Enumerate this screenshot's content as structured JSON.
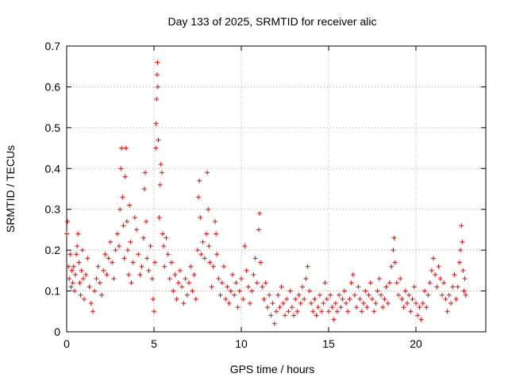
{
  "chart_data": {
    "type": "scatter",
    "title": "Day 133 of 2025, SRMTID for receiver alic",
    "xlabel": "GPS time / hours",
    "ylabel": "SRMTID / TECUs",
    "xlim": [
      0,
      24
    ],
    "ylim": [
      0,
      0.7
    ],
    "x_ticks": [
      0,
      5,
      10,
      15,
      20
    ],
    "y_ticks": [
      0,
      0.1,
      0.2,
      0.3,
      0.4,
      0.5,
      0.6,
      0.7
    ],
    "x_tick_labels": [
      "0",
      "5",
      "10",
      "15",
      "20"
    ],
    "y_tick_labels": [
      "0",
      "0.1",
      "0.2",
      "0.3",
      "0.4",
      "0.5",
      "0.6",
      "0.7"
    ],
    "grid": true,
    "marker": "+",
    "marker_color": "#ff0000",
    "series": [
      {
        "name": "SRMTID",
        "points": [
          [
            0.0,
            0.24
          ],
          [
            0.05,
            0.27
          ],
          [
            0.1,
            0.16
          ],
          [
            0.15,
            0.13
          ],
          [
            0.2,
            0.19
          ],
          [
            0.25,
            0.11
          ],
          [
            0.3,
            0.15
          ],
          [
            0.35,
            0.12
          ],
          [
            0.4,
            0.16
          ],
          [
            0.45,
            0.1
          ],
          [
            0.5,
            0.14
          ],
          [
            0.55,
            0.19
          ],
          [
            0.6,
            0.21
          ],
          [
            0.65,
            0.24
          ],
          [
            0.7,
            0.17
          ],
          [
            0.75,
            0.12
          ],
          [
            0.8,
            0.09
          ],
          [
            0.85,
            0.15
          ],
          [
            0.9,
            0.2
          ],
          [
            0.95,
            0.13
          ],
          [
            1.0,
            0.08
          ],
          [
            1.1,
            0.14
          ],
          [
            1.2,
            0.18
          ],
          [
            1.3,
            0.11
          ],
          [
            1.4,
            0.07
          ],
          [
            1.5,
            0.05
          ],
          [
            1.6,
            0.1
          ],
          [
            1.7,
            0.13
          ],
          [
            1.8,
            0.16
          ],
          [
            1.9,
            0.12
          ],
          [
            2.0,
            0.09
          ],
          [
            2.1,
            0.15
          ],
          [
            2.2,
            0.19
          ],
          [
            2.3,
            0.14
          ],
          [
            2.4,
            0.18
          ],
          [
            2.5,
            0.22
          ],
          [
            2.6,
            0.17
          ],
          [
            2.7,
            0.13
          ],
          [
            2.8,
            0.2
          ],
          [
            2.9,
            0.24
          ],
          [
            3.0,
            0.21
          ],
          [
            3.05,
            0.3
          ],
          [
            3.1,
            0.4
          ],
          [
            3.15,
            0.45
          ],
          [
            3.2,
            0.33
          ],
          [
            3.25,
            0.26
          ],
          [
            3.3,
            0.18
          ],
          [
            3.35,
            0.38
          ],
          [
            3.4,
            0.45
          ],
          [
            3.45,
            0.27
          ],
          [
            3.5,
            0.2
          ],
          [
            3.55,
            0.14
          ],
          [
            3.6,
            0.31
          ],
          [
            3.65,
            0.22
          ],
          [
            3.7,
            0.12
          ],
          [
            3.8,
            0.17
          ],
          [
            3.9,
            0.28
          ],
          [
            4.0,
            0.25
          ],
          [
            4.1,
            0.19
          ],
          [
            4.2,
            0.14
          ],
          [
            4.3,
            0.16
          ],
          [
            4.4,
            0.23
          ],
          [
            4.45,
            0.35
          ],
          [
            4.5,
            0.39
          ],
          [
            4.55,
            0.27
          ],
          [
            4.6,
            0.18
          ],
          [
            4.7,
            0.15
          ],
          [
            4.8,
            0.21
          ],
          [
            4.9,
            0.13
          ],
          [
            4.95,
            0.08
          ],
          [
            5.0,
            0.05
          ],
          [
            5.05,
            0.17
          ],
          [
            5.1,
            0.45
          ],
          [
            5.12,
            0.51
          ],
          [
            5.15,
            0.57
          ],
          [
            5.18,
            0.63
          ],
          [
            5.2,
            0.66
          ],
          [
            5.22,
            0.6
          ],
          [
            5.25,
            0.47
          ],
          [
            5.3,
            0.28
          ],
          [
            5.35,
            0.36
          ],
          [
            5.4,
            0.41
          ],
          [
            5.45,
            0.39
          ],
          [
            5.5,
            0.24
          ],
          [
            5.55,
            0.21
          ],
          [
            5.6,
            0.16
          ],
          [
            5.7,
            0.23
          ],
          [
            5.8,
            0.19
          ],
          [
            5.9,
            0.13
          ],
          [
            6.0,
            0.17
          ],
          [
            6.1,
            0.1
          ],
          [
            6.2,
            0.14
          ],
          [
            6.3,
            0.08
          ],
          [
            6.4,
            0.12
          ],
          [
            6.5,
            0.15
          ],
          [
            6.6,
            0.11
          ],
          [
            6.7,
            0.07
          ],
          [
            6.8,
            0.13
          ],
          [
            6.9,
            0.09
          ],
          [
            7.0,
            0.12
          ],
          [
            7.1,
            0.16
          ],
          [
            7.2,
            0.1
          ],
          [
            7.3,
            0.14
          ],
          [
            7.4,
            0.08
          ],
          [
            7.5,
            0.2
          ],
          [
            7.55,
            0.33
          ],
          [
            7.6,
            0.37
          ],
          [
            7.65,
            0.28
          ],
          [
            7.7,
            0.19
          ],
          [
            7.8,
            0.22
          ],
          [
            7.9,
            0.18
          ],
          [
            8.0,
            0.24
          ],
          [
            8.05,
            0.39
          ],
          [
            8.1,
            0.3
          ],
          [
            8.15,
            0.21
          ],
          [
            8.2,
            0.17
          ],
          [
            8.3,
            0.11
          ],
          [
            8.4,
            0.16
          ],
          [
            8.5,
            0.27
          ],
          [
            8.55,
            0.24
          ],
          [
            8.6,
            0.19
          ],
          [
            8.7,
            0.13
          ],
          [
            8.8,
            0.09
          ],
          [
            8.9,
            0.12
          ],
          [
            9.0,
            0.16
          ],
          [
            9.1,
            0.08
          ],
          [
            9.2,
            0.11
          ],
          [
            9.3,
            0.07
          ],
          [
            9.4,
            0.1
          ],
          [
            9.5,
            0.14
          ],
          [
            9.6,
            0.09
          ],
          [
            9.7,
            0.12
          ],
          [
            9.8,
            0.06
          ],
          [
            9.9,
            0.1
          ],
          [
            10.0,
            0.13
          ],
          [
            10.1,
            0.08
          ],
          [
            10.2,
            0.21
          ],
          [
            10.3,
            0.15
          ],
          [
            10.4,
            0.11
          ],
          [
            10.5,
            0.07
          ],
          [
            10.6,
            0.1
          ],
          [
            10.7,
            0.14
          ],
          [
            10.8,
            0.18
          ],
          [
            10.9,
            0.12
          ],
          [
            11.0,
            0.25
          ],
          [
            11.05,
            0.29
          ],
          [
            11.1,
            0.17
          ],
          [
            11.2,
            0.11
          ],
          [
            11.3,
            0.08
          ],
          [
            11.4,
            0.12
          ],
          [
            11.5,
            0.06
          ],
          [
            11.6,
            0.09
          ],
          [
            11.7,
            0.04
          ],
          [
            11.8,
            0.07
          ],
          [
            11.9,
            0.02
          ],
          [
            12.0,
            0.05
          ],
          [
            12.1,
            0.09
          ],
          [
            12.2,
            0.06
          ],
          [
            12.3,
            0.11
          ],
          [
            12.4,
            0.07
          ],
          [
            12.5,
            0.04
          ],
          [
            12.6,
            0.08
          ],
          [
            12.7,
            0.05
          ],
          [
            12.8,
            0.1
          ],
          [
            12.9,
            0.06
          ],
          [
            13.0,
            0.04
          ],
          [
            13.1,
            0.08
          ],
          [
            13.2,
            0.05
          ],
          [
            13.3,
            0.09
          ],
          [
            13.4,
            0.07
          ],
          [
            13.5,
            0.11
          ],
          [
            13.6,
            0.08
          ],
          [
            13.7,
            0.13
          ],
          [
            13.8,
            0.16
          ],
          [
            13.9,
            0.1
          ],
          [
            14.0,
            0.07
          ],
          [
            14.1,
            0.05
          ],
          [
            14.2,
            0.08
          ],
          [
            14.3,
            0.04
          ],
          [
            14.4,
            0.06
          ],
          [
            14.5,
            0.09
          ],
          [
            14.6,
            0.05
          ],
          [
            14.7,
            0.07
          ],
          [
            14.8,
            0.12
          ],
          [
            14.9,
            0.08
          ],
          [
            15.0,
            0.05
          ],
          [
            15.1,
            0.09
          ],
          [
            15.2,
            0.06
          ],
          [
            15.3,
            0.03
          ],
          [
            15.4,
            0.07
          ],
          [
            15.5,
            0.05
          ],
          [
            15.6,
            0.09
          ],
          [
            15.7,
            0.06
          ],
          [
            15.8,
            0.08
          ],
          [
            15.9,
            0.1
          ],
          [
            16.0,
            0.07
          ],
          [
            16.1,
            0.05
          ],
          [
            16.2,
            0.08
          ],
          [
            16.3,
            0.12
          ],
          [
            16.4,
            0.14
          ],
          [
            16.5,
            0.09
          ],
          [
            16.6,
            0.06
          ],
          [
            16.7,
            0.11
          ],
          [
            16.8,
            0.08
          ],
          [
            16.9,
            0.05
          ],
          [
            17.0,
            0.07
          ],
          [
            17.1,
            0.1
          ],
          [
            17.2,
            0.06
          ],
          [
            17.3,
            0.09
          ],
          [
            17.4,
            0.12
          ],
          [
            17.5,
            0.08
          ],
          [
            17.6,
            0.05
          ],
          [
            17.7,
            0.07
          ],
          [
            17.8,
            0.1
          ],
          [
            17.9,
            0.13
          ],
          [
            18.0,
            0.09
          ],
          [
            18.1,
            0.06
          ],
          [
            18.2,
            0.08
          ],
          [
            18.3,
            0.11
          ],
          [
            18.4,
            0.07
          ],
          [
            18.5,
            0.12
          ],
          [
            18.6,
            0.16
          ],
          [
            18.7,
            0.2
          ],
          [
            18.75,
            0.23
          ],
          [
            18.8,
            0.17
          ],
          [
            18.9,
            0.12
          ],
          [
            19.0,
            0.09
          ],
          [
            19.1,
            0.13
          ],
          [
            19.2,
            0.08
          ],
          [
            19.3,
            0.06
          ],
          [
            19.4,
            0.1
          ],
          [
            19.5,
            0.07
          ],
          [
            19.6,
            0.09
          ],
          [
            19.7,
            0.05
          ],
          [
            19.8,
            0.08
          ],
          [
            19.9,
            0.11
          ],
          [
            20.0,
            0.07
          ],
          [
            20.1,
            0.04
          ],
          [
            20.2,
            0.06
          ],
          [
            20.3,
            0.03
          ],
          [
            20.4,
            0.07
          ],
          [
            20.5,
            0.1
          ],
          [
            20.6,
            0.06
          ],
          [
            20.7,
            0.09
          ],
          [
            20.8,
            0.12
          ],
          [
            20.9,
            0.15
          ],
          [
            21.0,
            0.18
          ],
          [
            21.1,
            0.14
          ],
          [
            21.2,
            0.11
          ],
          [
            21.3,
            0.16
          ],
          [
            21.4,
            0.13
          ],
          [
            21.5,
            0.09
          ],
          [
            21.6,
            0.12
          ],
          [
            21.7,
            0.08
          ],
          [
            21.8,
            0.05
          ],
          [
            21.9,
            0.09
          ],
          [
            22.0,
            0.07
          ],
          [
            22.1,
            0.11
          ],
          [
            22.2,
            0.14
          ],
          [
            22.3,
            0.08
          ],
          [
            22.4,
            0.11
          ],
          [
            22.5,
            0.17
          ],
          [
            22.55,
            0.2
          ],
          [
            22.6,
            0.26
          ],
          [
            22.65,
            0.22
          ],
          [
            22.7,
            0.15
          ],
          [
            22.75,
            0.1
          ],
          [
            22.8,
            0.13
          ],
          [
            22.85,
            0.09
          ]
        ]
      }
    ]
  }
}
